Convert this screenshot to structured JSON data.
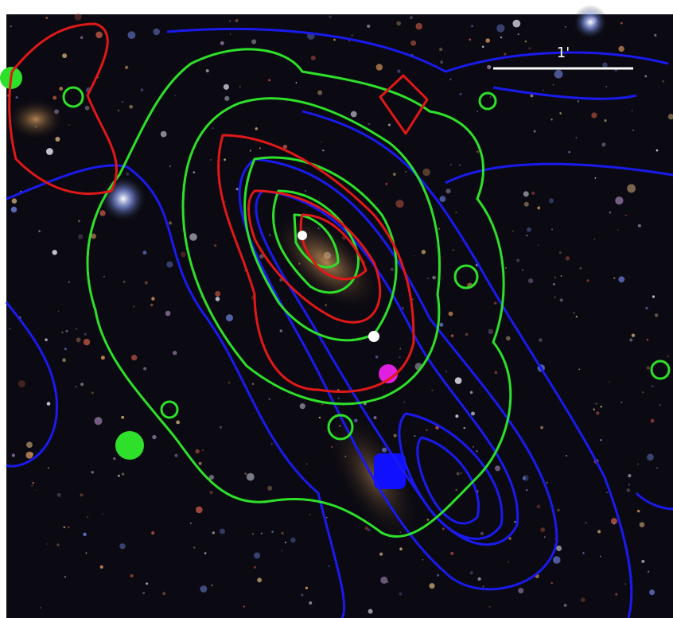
{
  "scale_bar": {
    "label": "1'"
  }
}
